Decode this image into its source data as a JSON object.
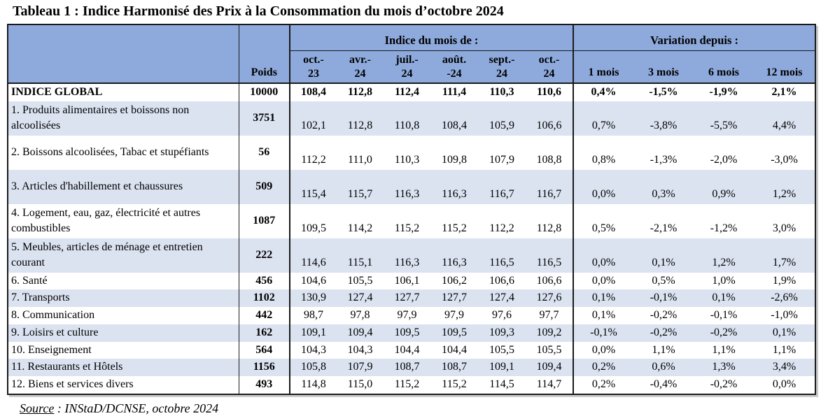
{
  "title": "Tableau 1 : Indice Harmonisé des Prix à la Consommation du mois d’octobre 2024",
  "colors": {
    "header_blue": "#8EAADC",
    "band_blue": "#DBE3F1",
    "border": "#1a1a1a"
  },
  "table": {
    "poids_header": "Poids",
    "indice_group_header": "Indice du mois de :",
    "variation_group_header": "Variation depuis :",
    "month_columns": [
      {
        "line1": "oct.-",
        "line2": "23"
      },
      {
        "line1": "avr.-",
        "line2": "24"
      },
      {
        "line1": "juil.-",
        "line2": "24"
      },
      {
        "line1": "août.",
        "line2": "-24"
      },
      {
        "line1": "sept.-",
        "line2": "24"
      },
      {
        "line1": "oct.-",
        "line2": "24"
      }
    ],
    "variation_columns": [
      "1 mois",
      "3 mois",
      "6 mois",
      "12 mois"
    ],
    "rows": [
      {
        "label": "INDICE GLOBAL",
        "poids": "10000",
        "indices": [
          "108,4",
          "112,8",
          "112,4",
          "111,4",
          "110,3",
          "110,6"
        ],
        "variations": [
          "0,4%",
          "-1,5%",
          "-1,9%",
          "2,1%"
        ],
        "two_line": false,
        "global": true
      },
      {
        "label": "1. Produits alimentaires et boissons non alcoolisées",
        "poids": "3751",
        "indices": [
          "102,1",
          "112,8",
          "110,8",
          "108,4",
          "105,9",
          "106,6"
        ],
        "variations": [
          "0,7%",
          "-3,8%",
          "-5,5%",
          "4,4%"
        ],
        "two_line": true,
        "global": false
      },
      {
        "label": "2. Boissons alcoolisées, Tabac et stupéfiants",
        "poids": "56",
        "indices": [
          "112,2",
          "111,0",
          "110,3",
          "109,8",
          "107,9",
          "108,8"
        ],
        "variations": [
          "0,8%",
          "-1,3%",
          "-2,0%",
          "-3,0%"
        ],
        "two_line": true,
        "global": false
      },
      {
        "label": "3. Articles d'habillement et chaussures",
        "poids": "509",
        "indices": [
          "115,4",
          "115,7",
          "116,3",
          "116,3",
          "116,7",
          "116,7"
        ],
        "variations": [
          "0,0%",
          "0,3%",
          "0,9%",
          "1,2%"
        ],
        "two_line": true,
        "global": false
      },
      {
        "label": "4. Logement, eau, gaz, électricité et autres combustibles",
        "poids": "1087",
        "indices": [
          "109,5",
          "114,2",
          "115,2",
          "115,2",
          "112,2",
          "112,8"
        ],
        "variations": [
          "0,5%",
          "-2,1%",
          "-1,2%",
          "3,0%"
        ],
        "two_line": true,
        "global": false
      },
      {
        "label": "5. Meubles, articles de ménage et entretien courant",
        "poids": "222",
        "indices": [
          "114,6",
          "115,1",
          "116,3",
          "116,3",
          "116,5",
          "116,5"
        ],
        "variations": [
          "0,0%",
          "0,1%",
          "1,2%",
          "1,7%"
        ],
        "two_line": true,
        "global": false
      },
      {
        "label": "6. Santé",
        "poids": "456",
        "indices": [
          "104,6",
          "105,5",
          "106,1",
          "106,2",
          "106,6",
          "106,6"
        ],
        "variations": [
          "0,0%",
          "0,5%",
          "1,0%",
          "1,9%"
        ],
        "two_line": false,
        "global": false
      },
      {
        "label": "7. Transports",
        "poids": "1102",
        "indices": [
          "130,9",
          "127,4",
          "127,7",
          "127,7",
          "127,4",
          "127,6"
        ],
        "variations": [
          "0,1%",
          "-0,1%",
          "0,1%",
          "-2,6%"
        ],
        "two_line": false,
        "global": false
      },
      {
        "label": "8. Communication",
        "poids": "442",
        "indices": [
          "98,7",
          "97,8",
          "97,9",
          "97,9",
          "97,6",
          "97,7"
        ],
        "variations": [
          "0,1%",
          "-0,2%",
          "-0,1%",
          "-1,0%"
        ],
        "two_line": false,
        "global": false
      },
      {
        "label": "9. Loisirs et culture",
        "poids": "162",
        "indices": [
          "109,1",
          "109,4",
          "109,5",
          "109,5",
          "109,3",
          "109,2"
        ],
        "variations": [
          "-0,1%",
          "-0,2%",
          "-0,2%",
          "0,1%"
        ],
        "two_line": false,
        "global": false
      },
      {
        "label": "10. Enseignement",
        "poids": "564",
        "indices": [
          "104,3",
          "104,3",
          "104,4",
          "104,4",
          "105,5",
          "105,5"
        ],
        "variations": [
          "0,0%",
          "1,1%",
          "1,1%",
          "1,1%"
        ],
        "two_line": false,
        "global": false
      },
      {
        "label": "11. Restaurants et Hôtels",
        "poids": "1156",
        "indices": [
          "105,8",
          "107,9",
          "108,7",
          "108,7",
          "109,1",
          "109,4"
        ],
        "variations": [
          "0,2%",
          "0,6%",
          "1,3%",
          "3,4%"
        ],
        "two_line": false,
        "global": false
      },
      {
        "label": "12. Biens et services divers",
        "poids": "493",
        "indices": [
          "114,8",
          "115,0",
          "115,2",
          "115,2",
          "114,5",
          "114,7"
        ],
        "variations": [
          "0,2%",
          "-0,4%",
          "-0,2%",
          "0,0%"
        ],
        "two_line": false,
        "global": false
      }
    ]
  },
  "footer": {
    "source_label": "Source",
    "source_text": " : INStaD/DCNSE, octobre 2024"
  }
}
